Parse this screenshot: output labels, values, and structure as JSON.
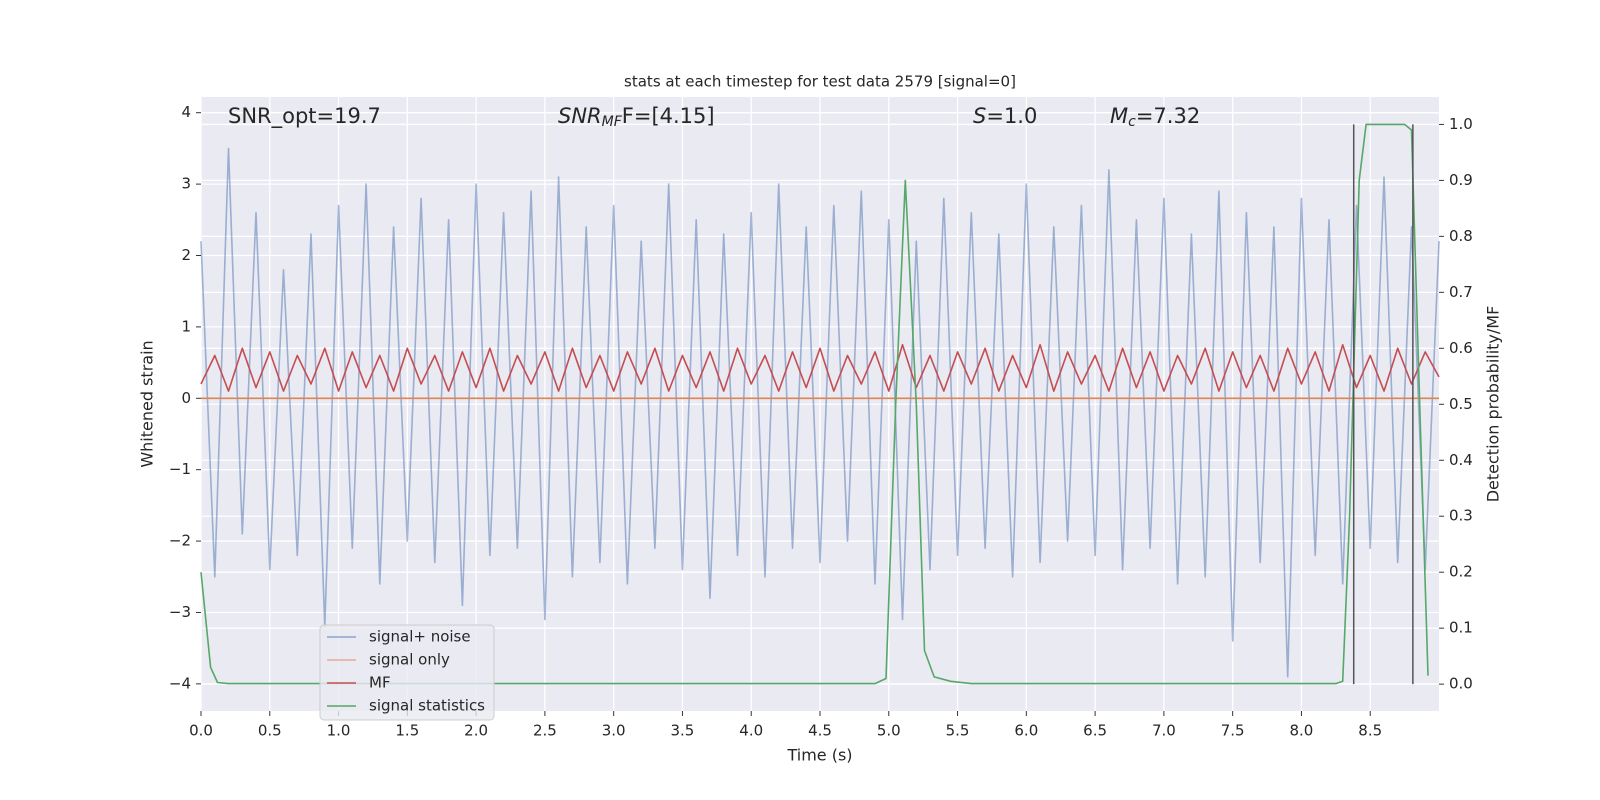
{
  "chart_data": {
    "type": "line",
    "title": "stats at each timestep for test data 2579 [signal=0]",
    "x_label": "Time (s)",
    "y_label": "Whitened strain",
    "y2_label": "Detection probability/MF",
    "annotations": [
      {
        "text": "SNR_opt=19.7"
      },
      {
        "main": "SNR",
        "sub": "MF",
        "rest": "F=[4.15]"
      },
      {
        "main": "S",
        "rest": "=1.0"
      },
      {
        "main": "M",
        "sub": "c",
        "rest": "=7.32"
      }
    ],
    "xlim": [
      0,
      9.0
    ],
    "ylim": [
      -4.38,
      4.22
    ],
    "y2lim": [
      -0.048,
      1.049
    ],
    "xticks": [
      {
        "value": 0,
        "label": "0.0"
      },
      0.5,
      {
        "value": 1,
        "label": "1.0"
      },
      1.5,
      {
        "value": 2,
        "label": "2.0"
      },
      2.5,
      {
        "value": 3,
        "label": "3.0"
      },
      3.5,
      {
        "value": 4,
        "label": "4.0"
      },
      4.5,
      {
        "value": 5,
        "label": "5.0"
      },
      5.5,
      {
        "value": 6,
        "label": "6.0"
      },
      6.5,
      {
        "value": 7,
        "label": "7.0"
      },
      7.5,
      {
        "value": 8,
        "label": "8.0"
      },
      8.5
    ],
    "yticks": [
      {
        "value": -4,
        "label": "−4"
      },
      {
        "value": -3,
        "label": "−3"
      },
      {
        "value": -2,
        "label": "−2"
      },
      {
        "value": -1,
        "label": "−1"
      },
      0,
      1,
      2,
      3,
      4
    ],
    "y2ticks": [
      {
        "value": 0,
        "label": "0.0"
      },
      0.1,
      0.2,
      0.3,
      0.4,
      0.5,
      0.6,
      0.7,
      0.8,
      0.9,
      {
        "value": 1,
        "label": "1.0"
      }
    ],
    "grid": true,
    "series": [
      {
        "name": "signal+ noise",
        "color": "#4c72b0",
        "x": [
          0,
          0.1,
          0.2,
          0.3,
          0.4,
          0.5,
          0.6,
          0.7,
          0.8,
          0.9,
          1,
          1.1,
          1.2,
          1.3,
          1.4,
          1.5,
          1.6,
          1.7,
          1.8,
          1.9,
          2,
          2.1,
          2.2,
          2.3,
          2.4,
          2.5,
          2.6,
          2.7,
          2.8,
          2.9,
          3,
          3.1,
          3.2,
          3.3,
          3.4,
          3.5,
          3.6,
          3.7,
          3.8,
          3.9,
          4,
          4.1,
          4.2,
          4.3,
          4.4,
          4.5,
          4.6,
          4.7,
          4.8,
          4.9,
          5,
          5.1,
          5.2,
          5.3,
          5.4,
          5.5,
          5.6,
          5.7,
          5.8,
          5.9,
          6,
          6.1,
          6.2,
          6.3,
          6.4,
          6.5,
          6.6,
          6.7,
          6.8,
          6.9,
          7,
          7.1,
          7.2,
          7.3,
          7.4,
          7.5,
          7.6,
          7.7,
          7.8,
          7.9,
          8,
          8.1,
          8.2,
          8.3,
          8.4,
          8.5,
          8.6,
          8.7,
          8.8,
          8.9,
          9
        ],
        "values": [
          2.2,
          -2.5,
          3.5,
          -1.9,
          2.6,
          -2.4,
          1.8,
          -2.2,
          2.3,
          -3.2,
          2.7,
          -2.1,
          3.0,
          -2.6,
          2.4,
          -2.0,
          2.8,
          -2.3,
          2.5,
          -2.9,
          3.0,
          -2.2,
          2.6,
          -2.1,
          2.9,
          -3.1,
          3.1,
          -2.5,
          2.4,
          -2.3,
          2.7,
          -2.6,
          2.2,
          -2.1,
          3.0,
          -2.4,
          2.5,
          -2.8,
          2.3,
          -2.2,
          2.6,
          -2.5,
          3.0,
          -2.1,
          2.4,
          -2.3,
          2.7,
          -2.0,
          2.9,
          -2.6,
          2.5,
          -3.1,
          2.2,
          -2.4,
          2.8,
          -2.2,
          2.6,
          -2.1,
          2.3,
          -2.5,
          3.0,
          -2.3,
          2.4,
          -2.0,
          2.7,
          -2.2,
          3.2,
          -2.4,
          2.5,
          -2.1,
          2.8,
          -2.6,
          2.3,
          -2.5,
          2.9,
          -3.4,
          2.6,
          -2.3,
          2.4,
          -3.9,
          2.8,
          -2.2,
          2.5,
          -2.6,
          2.7,
          -2.1,
          3.1,
          -2.3,
          2.4,
          -2.4,
          2.2
        ]
      },
      {
        "name": "signal only",
        "color": "#dd8452",
        "x": [
          0,
          9
        ],
        "values": [
          0,
          0
        ]
      },
      {
        "name": "MF",
        "color": "#c44e52",
        "x": [
          0,
          0.1,
          0.2,
          0.3,
          0.4,
          0.5,
          0.6,
          0.7,
          0.8,
          0.9,
          1,
          1.1,
          1.2,
          1.3,
          1.4,
          1.5,
          1.6,
          1.7,
          1.8,
          1.9,
          2,
          2.1,
          2.2,
          2.3,
          2.4,
          2.5,
          2.6,
          2.7,
          2.8,
          2.9,
          3,
          3.1,
          3.2,
          3.3,
          3.4,
          3.5,
          3.6,
          3.7,
          3.8,
          3.9,
          4,
          4.1,
          4.2,
          4.3,
          4.4,
          4.5,
          4.6,
          4.7,
          4.8,
          4.9,
          5,
          5.1,
          5.2,
          5.3,
          5.4,
          5.5,
          5.6,
          5.7,
          5.8,
          5.9,
          6,
          6.1,
          6.2,
          6.3,
          6.4,
          6.5,
          6.6,
          6.7,
          6.8,
          6.9,
          7,
          7.1,
          7.2,
          7.3,
          7.4,
          7.5,
          7.6,
          7.7,
          7.8,
          7.9,
          8,
          8.1,
          8.2,
          8.3,
          8.4,
          8.5,
          8.6,
          8.7,
          8.8,
          8.9,
          9
        ],
        "values": [
          0.2,
          0.6,
          0.1,
          0.7,
          0.15,
          0.65,
          0.1,
          0.6,
          0.2,
          0.7,
          0.1,
          0.65,
          0.15,
          0.6,
          0.1,
          0.7,
          0.2,
          0.6,
          0.1,
          0.65,
          0.15,
          0.7,
          0.1,
          0.6,
          0.2,
          0.65,
          0.1,
          0.7,
          0.15,
          0.6,
          0.1,
          0.65,
          0.2,
          0.7,
          0.1,
          0.6,
          0.15,
          0.65,
          0.1,
          0.7,
          0.2,
          0.6,
          0.1,
          0.65,
          0.15,
          0.7,
          0.1,
          0.6,
          0.2,
          0.65,
          0.1,
          0.75,
          0.15,
          0.6,
          0.1,
          0.65,
          0.2,
          0.7,
          0.1,
          0.6,
          0.15,
          0.75,
          0.1,
          0.65,
          0.2,
          0.6,
          0.1,
          0.7,
          0.15,
          0.65,
          0.1,
          0.6,
          0.2,
          0.7,
          0.1,
          0.65,
          0.15,
          0.6,
          0.1,
          0.7,
          0.2,
          0.65,
          0.1,
          0.75,
          0.15,
          0.6,
          0.1,
          0.7,
          0.2,
          0.65,
          0.3
        ]
      },
      {
        "name": "signal statistics",
        "color": "#55a868",
        "axis": "y2",
        "x": [
          0,
          0.07,
          0.12,
          0.2,
          0.5,
          1,
          2,
          3,
          4,
          4.9,
          4.98,
          5.05,
          5.12,
          5.2,
          5.26,
          5.33,
          5.45,
          5.6,
          6,
          7,
          8,
          8.25,
          8.3,
          8.35,
          8.42,
          8.47,
          8.75,
          8.8,
          8.86,
          8.92
        ],
        "values": [
          0.2,
          0.03,
          0.003,
          0.001,
          0.001,
          0.001,
          0.001,
          0.001,
          0.001,
          0.001,
          0.01,
          0.5,
          0.9,
          0.5,
          0.06,
          0.013,
          0.005,
          0.001,
          0.001,
          0.001,
          0.001,
          0.001,
          0.005,
          0.3,
          0.9,
          1.0,
          1.0,
          0.99,
          0.5,
          0.015
        ]
      }
    ],
    "vlines": {
      "x": [
        8.38,
        8.81
      ],
      "y2": [
        0,
        1
      ],
      "color": "#555555"
    }
  }
}
